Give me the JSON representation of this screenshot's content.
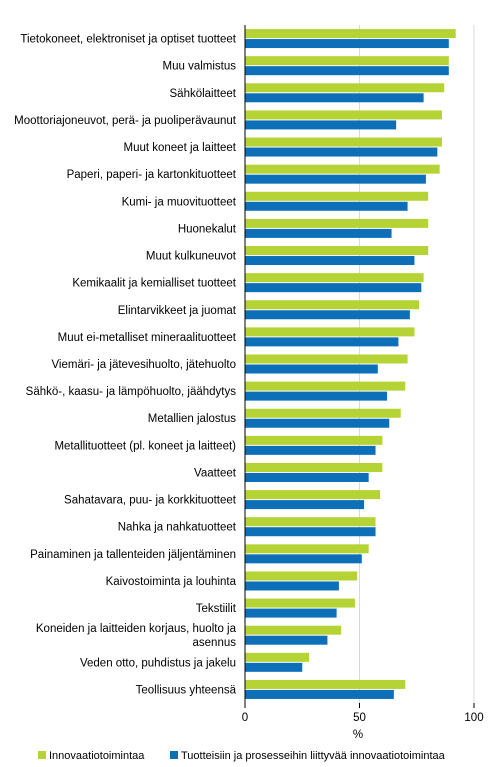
{
  "chart_data": {
    "type": "bar",
    "orientation": "horizontal",
    "categories": [
      "Tietokoneet, elektroniset ja optiset tuotteet",
      "Muu valmistus",
      "Sähkölaitteet",
      "Moottoriajoneuvot, perä- ja puoliperävaunut",
      "Muut koneet ja laitteet",
      "Paperi, paperi- ja kartonkituotteet",
      "Kumi- ja muovituotteet",
      "Huonekalut",
      "Muut kulkuneuvot",
      "Kemikaalit ja kemialliset tuotteet",
      "Elintarvikkeet ja juomat",
      "Muut ei-metalliset mineraalituotteet",
      "Viemäri- ja jätevesihuolto, jätehuolto",
      "Sähkö-, kaasu- ja lämpöhuolto, jäähdytys",
      "Metallien jalostus",
      "Metallituotteet (pl. koneet ja laitteet)",
      "Vaatteet",
      "Sahatavara, puu- ja korkkituotteet",
      "Nahka ja nahkatuotteet",
      "Painaminen ja tallenteiden jäljentäminen",
      "Kaivostoiminta ja louhinta",
      "Tekstiilit",
      "Koneiden ja laitteiden korjaus, huolto ja asennus",
      "Veden otto, puhdistus ja jakelu",
      "Teollisuus yhteensä"
    ],
    "category_lines": [
      [
        "Tietokoneet, elektroniset ja optiset tuotteet"
      ],
      [
        "Muu valmistus"
      ],
      [
        "Sähkölaitteet"
      ],
      [
        "Moottoriajoneuvot, perä- ja puoliperävaunut"
      ],
      [
        "Muut koneet ja laitteet"
      ],
      [
        "Paperi, paperi- ja kartonkituotteet"
      ],
      [
        "Kumi- ja muovituotteet"
      ],
      [
        "Huonekalut"
      ],
      [
        "Muut kulkuneuvot"
      ],
      [
        "Kemikaalit ja kemialliset tuotteet"
      ],
      [
        "Elintarvikkeet ja juomat"
      ],
      [
        "Muut ei-metalliset mineraalituotteet"
      ],
      [
        "Viemäri- ja jätevesihuolto, jätehuolto"
      ],
      [
        "Sähkö-, kaasu- ja lämpöhuolto, jäähdytys"
      ],
      [
        "Metallien jalostus"
      ],
      [
        "Metallituotteet (pl. koneet ja laitteet)"
      ],
      [
        "Vaatteet"
      ],
      [
        "Sahatavara, puu- ja korkkituotteet"
      ],
      [
        "Nahka ja nahkatuotteet"
      ],
      [
        "Painaminen ja tallenteiden jäljentäminen"
      ],
      [
        "Kaivostoiminta ja louhinta"
      ],
      [
        "Tekstiilit"
      ],
      [
        "Koneiden ja laitteiden korjaus, huolto ja",
        "asennus"
      ],
      [
        "Veden otto, puhdistus ja jakelu"
      ],
      [
        "Teollisuus yhteensä"
      ]
    ],
    "series": [
      {
        "name": "Innovaatiotoimintaa",
        "color": "#b5d334",
        "values": [
          92,
          89,
          87,
          86,
          86,
          85,
          80,
          80,
          80,
          78,
          76,
          74,
          71,
          70,
          68,
          60,
          60,
          59,
          57,
          54,
          49,
          48,
          42,
          28,
          70
        ]
      },
      {
        "name": "Tuotteisiin ja prosesseihin liittyvää innovaatiotoimintaa",
        "color": "#0c6fb8",
        "values": [
          89,
          89,
          78,
          66,
          84,
          79,
          71,
          64,
          74,
          77,
          72,
          67,
          58,
          62,
          63,
          57,
          54,
          52,
          57,
          51,
          41,
          40,
          36,
          25,
          65
        ]
      }
    ],
    "xlabel": "%",
    "xlim": [
      0,
      100
    ],
    "xticks": [
      0,
      50,
      100
    ],
    "xtick_labels": [
      "0",
      "50",
      "100"
    ],
    "grid": "vertical",
    "legend": "bottom"
  }
}
